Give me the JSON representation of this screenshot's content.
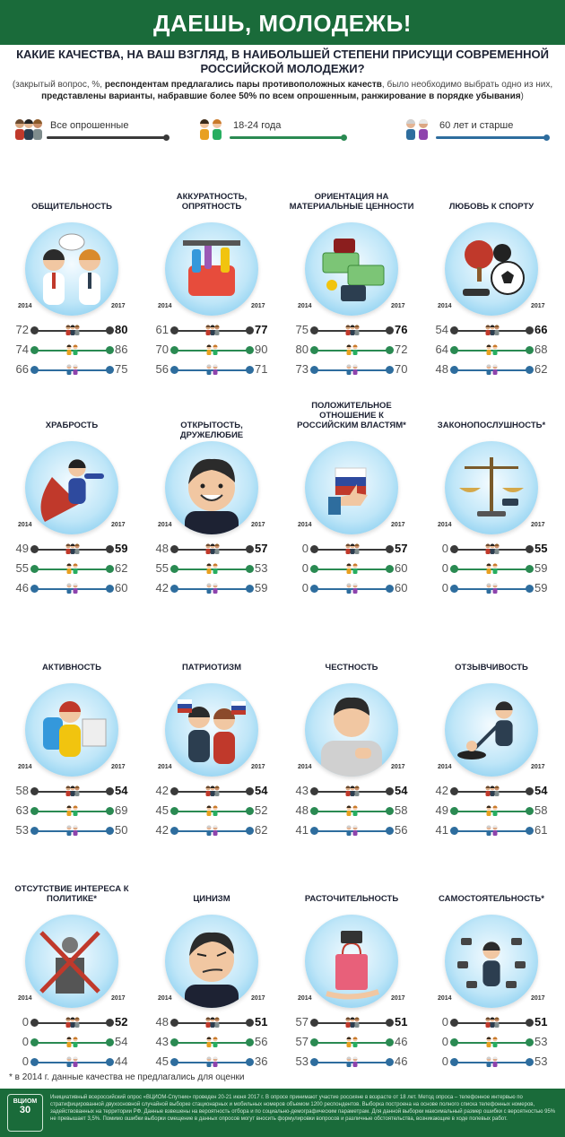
{
  "header": {
    "title": "ДАЕШЬ, МОЛОДЕЖЬ!",
    "question": "КАКИЕ КАЧЕСТВА, НА ВАШ ВЗГЛЯД, В НАИБОЛЬШЕЙ СТЕПЕНИ ПРИСУЩИ СОВРЕМЕННОЙ РОССИЙСКОЙ МОЛОДЕЖИ?",
    "note_a": "(закрытый вопрос, %, ",
    "note_b": "респондентам предлагались пары противоположных качеств",
    "note_c": ", было необходимо выбрать одно из них, ",
    "note_d": "представлены варианты, набравшие более 50% по всем опрошенным, ранжирование в порядке убывания",
    "note_e": ")"
  },
  "colors": {
    "all": "#3a3a3a",
    "young": "#2a8a52",
    "old": "#2e6d9e",
    "banner": "#1a6b3a"
  },
  "legend": [
    {
      "label": "Все опрошенные",
      "icon": "group-icon"
    },
    {
      "label": "18-24 года",
      "icon": "youth-icon"
    },
    {
      "label": "60 лет и старше",
      "icon": "elderly-icon"
    }
  ],
  "years": {
    "start": "2014",
    "end": "2017"
  },
  "chart_data": {
    "type": "dumbbell",
    "series_names": [
      "Все опрошенные",
      "18-24 года",
      "60 лет и старше"
    ],
    "qualities": [
      {
        "title": "ОБЩИТЕЛЬНОСТЬ",
        "icon": "talking-people-icon",
        "v2014": [
          "72",
          "74",
          "66"
        ],
        "v2017": [
          "80",
          "86",
          "75"
        ]
      },
      {
        "title": "АККУРАТНОСТЬ, ОПРЯТНОСТЬ",
        "icon": "cleaning-supplies-icon",
        "v2014": [
          "61",
          "70",
          "56"
        ],
        "v2017": [
          "77",
          "90",
          "71"
        ]
      },
      {
        "title": "ОРИЕНТАЦИЯ НА МАТЕРИАЛЬНЫЕ ЦЕННОСТИ",
        "icon": "money-icon",
        "v2014": [
          "75",
          "80",
          "73"
        ],
        "v2017": [
          "76",
          "72",
          "70"
        ]
      },
      {
        "title": "ЛЮБОВЬ К СПОРТУ",
        "icon": "sports-icon",
        "v2014": [
          "54",
          "64",
          "48"
        ],
        "v2017": [
          "66",
          "68",
          "62"
        ]
      },
      {
        "title": "ХРАБРОСТЬ",
        "icon": "superhero-icon",
        "v2014": [
          "49",
          "55",
          "46"
        ],
        "v2017": [
          "59",
          "62",
          "60"
        ]
      },
      {
        "title": "ОТКРЫТОСТЬ, ДРУЖЕЛЮБИЕ",
        "icon": "smiling-face-icon",
        "v2014": [
          "48",
          "55",
          "42"
        ],
        "v2017": [
          "57",
          "53",
          "59"
        ]
      },
      {
        "title": "ПОЛОЖИТЕЛЬНОЕ ОТНОШЕНИЕ К РОССИЙСКИМ ВЛАСТЯМ*",
        "icon": "thumbs-up-icon",
        "v2014": [
          "0",
          "0",
          "0"
        ],
        "v2017": [
          "57",
          "60",
          "60"
        ]
      },
      {
        "title": "ЗАКОНОПОСЛУШНОСТЬ*",
        "icon": "scales-icon",
        "v2014": [
          "0",
          "0",
          "0"
        ],
        "v2017": [
          "55",
          "59",
          "59"
        ]
      },
      {
        "title": "АКТИВНОСТЬ",
        "icon": "traveler-icon",
        "v2014": [
          "58",
          "63",
          "53"
        ],
        "v2017": [
          "54",
          "69",
          "50"
        ]
      },
      {
        "title": "ПАТРИОТИЗМ",
        "icon": "flag-people-icon",
        "v2014": [
          "42",
          "45",
          "42"
        ],
        "v2017": [
          "54",
          "52",
          "62"
        ]
      },
      {
        "title": "ЧЕСТНОСТЬ",
        "icon": "hand-on-heart-icon",
        "v2014": [
          "43",
          "48",
          "41"
        ],
        "v2017": [
          "54",
          "58",
          "56"
        ]
      },
      {
        "title": "ОТЗЫВЧИВОСТЬ",
        "icon": "helping-hand-icon",
        "v2014": [
          "42",
          "49",
          "41"
        ],
        "v2017": [
          "54",
          "58",
          "61"
        ]
      },
      {
        "title": "ОТСУТСТВИЕ ИНТЕРЕСА К ПОЛИТИКЕ*",
        "icon": "crossed-podium-icon",
        "v2014": [
          "0",
          "0",
          "0"
        ],
        "v2017": [
          "52",
          "54",
          "44"
        ]
      },
      {
        "title": "ЦИНИЗМ",
        "icon": "smirking-face-icon",
        "v2014": [
          "48",
          "43",
          "45"
        ],
        "v2017": [
          "51",
          "56",
          "36"
        ]
      },
      {
        "title": "РАСТОЧИТЕЛЬНОСТЬ",
        "icon": "shopping-bag-icon",
        "v2014": [
          "57",
          "57",
          "53"
        ],
        "v2017": [
          "51",
          "46",
          "46"
        ]
      },
      {
        "title": "САМОСТОЯТЕЛЬНОСТЬ*",
        "icon": "multitasking-icon",
        "v2014": [
          "0",
          "0",
          "0"
        ],
        "v2017": [
          "51",
          "53",
          "53"
        ]
      }
    ]
  },
  "footnote": "* в 2014 г. данные качества не предлагались для оценки",
  "footer": {
    "logo_top": "ВЦИОМ",
    "logo_num": "30",
    "method": "Инициативный всероссийский опрос «ВЦИОМ-Спутник» проведен 20-21 июня 2017 г. В опросе принимают участие россияне в возрасте от 18 лет. Метод опроса – телефонное интервью по стратифицированной двухосновной случайной выборке стационарных и мобильных номеров объемом 1200 респондентов. Выборка построена на основе полного списка телефонных номеров, задействованных на территории РФ. Данные взвешены на вероятность отбора и по социально-демографическим параметрам. Для данной выборки максимальный размер ошибки с вероятностью 95% не превышает 3,5%. Помимо ошибки выборки смещение в данных опросов могут вносить формулировки вопросов и различные обстоятельства, возникающие в ходе полевых работ."
  }
}
